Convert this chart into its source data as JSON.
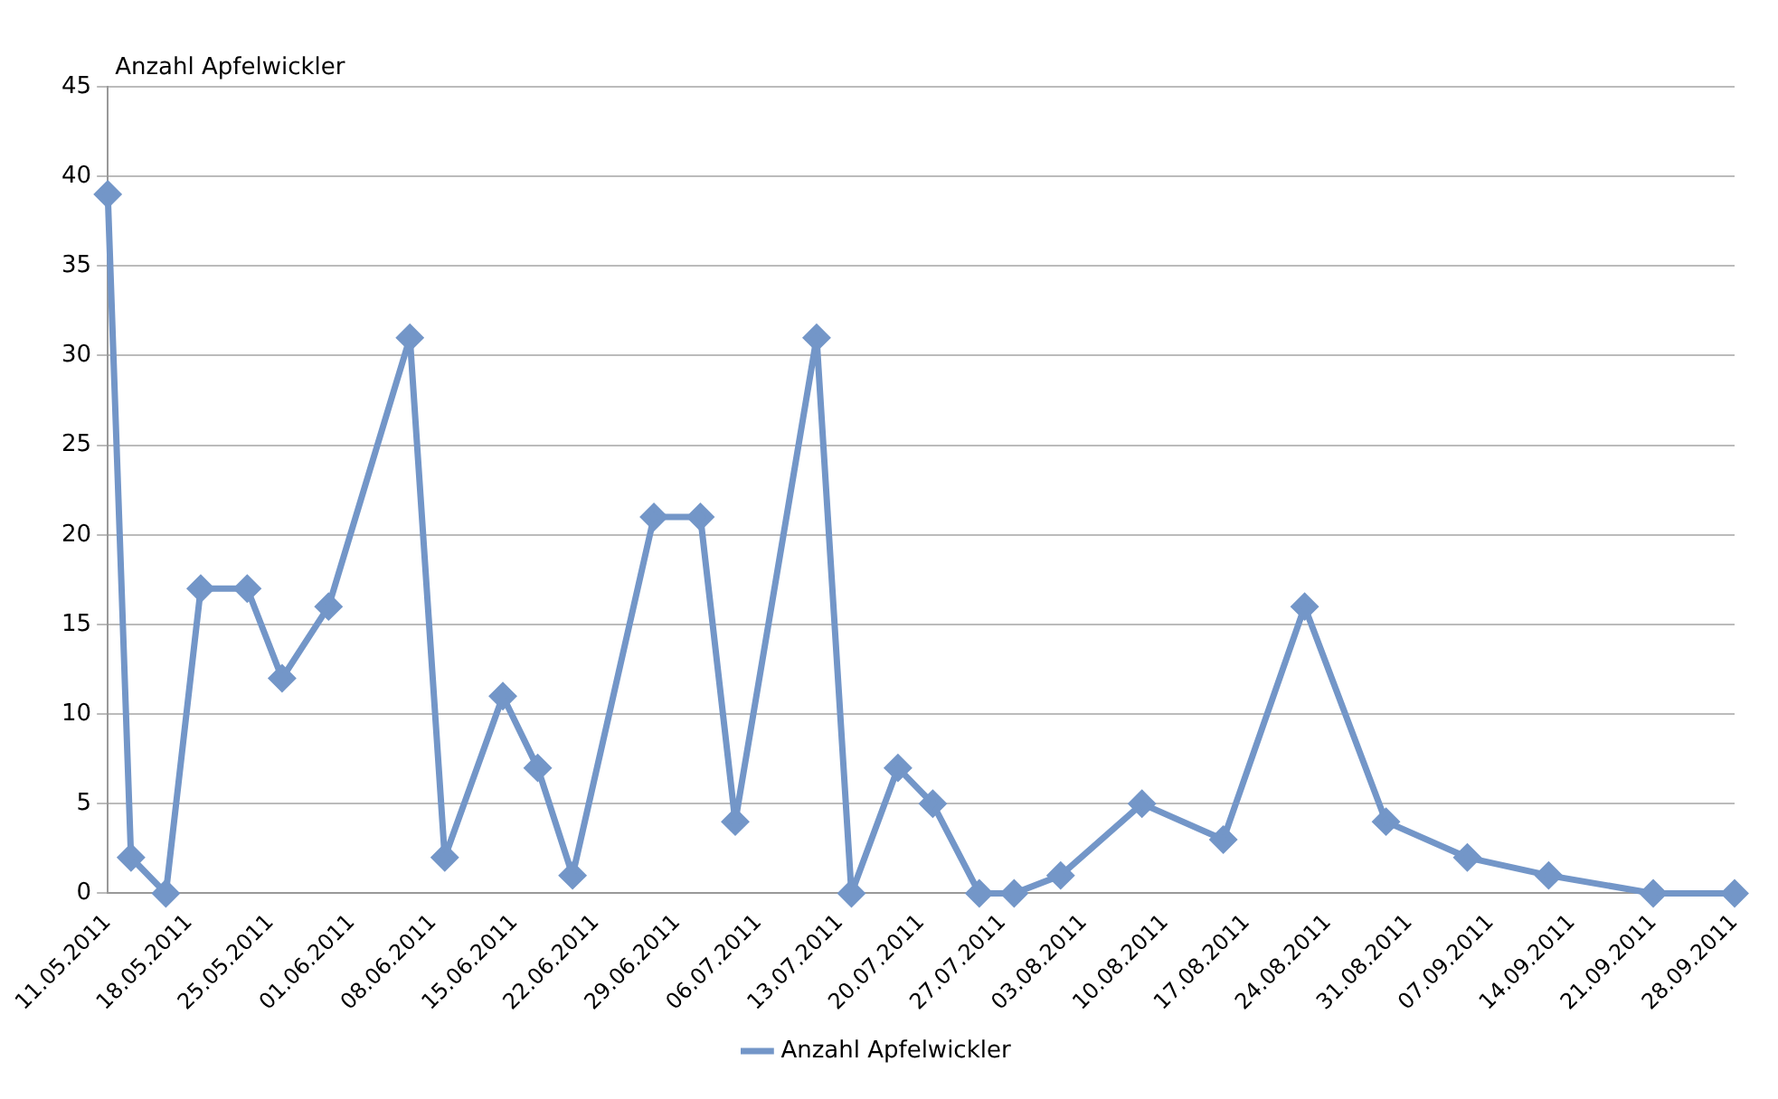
{
  "chart_data": {
    "type": "line",
    "ylabel": "Anzahl Apfelwickler",
    "x": [
      "2011-05-11",
      "2011-05-13",
      "2011-05-16",
      "2011-05-19",
      "2011-05-23",
      "2011-05-26",
      "2011-05-30",
      "2011-06-06",
      "2011-06-09",
      "2011-06-14",
      "2011-06-17",
      "2011-06-20",
      "2011-06-27",
      "2011-07-01",
      "2011-07-04",
      "2011-07-11",
      "2011-07-14",
      "2011-07-18",
      "2011-07-21",
      "2011-07-25",
      "2011-07-28",
      "2011-08-01",
      "2011-08-08",
      "2011-08-15",
      "2011-08-22",
      "2011-08-29",
      "2011-09-05",
      "2011-09-12",
      "2011-09-21",
      "2011-09-28"
    ],
    "series": [
      {
        "name": "Anzahl Apfelwickler",
        "color": "#7396c8",
        "values": [
          39,
          2,
          0,
          17,
          17,
          12,
          16,
          31,
          2,
          11,
          7,
          1,
          21,
          21,
          4,
          31,
          0,
          7,
          5,
          0,
          0,
          1,
          5,
          3,
          16,
          4,
          2,
          1,
          0,
          0
        ]
      }
    ],
    "xlim": [
      "2011-05-11",
      "2011-09-28"
    ],
    "xticks": [
      {
        "value": "2011-05-11",
        "label": "11.05.2011"
      },
      {
        "value": "2011-05-18",
        "label": "18.05.2011"
      },
      {
        "value": "2011-05-25",
        "label": "25.05.2011"
      },
      {
        "value": "2011-06-01",
        "label": "01.06.2011"
      },
      {
        "value": "2011-06-08",
        "label": "08.06.2011"
      },
      {
        "value": "2011-06-15",
        "label": "15.06.2011"
      },
      {
        "value": "2011-06-22",
        "label": "22.06.2011"
      },
      {
        "value": "2011-06-29",
        "label": "29.06.2011"
      },
      {
        "value": "2011-07-06",
        "label": "06.07.2011"
      },
      {
        "value": "2011-07-13",
        "label": "13.07.2011"
      },
      {
        "value": "2011-07-20",
        "label": "20.07.2011"
      },
      {
        "value": "2011-07-27",
        "label": "27.07.2011"
      },
      {
        "value": "2011-08-03",
        "label": "03.08.2011"
      },
      {
        "value": "2011-08-10",
        "label": "10.08.2011"
      },
      {
        "value": "2011-08-17",
        "label": "17.08.2011"
      },
      {
        "value": "2011-08-24",
        "label": "24.08.2011"
      },
      {
        "value": "2011-08-31",
        "label": "31.08.2011"
      },
      {
        "value": "2011-09-07",
        "label": "07.09.2011"
      },
      {
        "value": "2011-09-14",
        "label": "14.09.2011"
      },
      {
        "value": "2011-09-21",
        "label": "21.09.2011"
      },
      {
        "value": "2011-09-28",
        "label": "28.09.2011"
      }
    ],
    "ylim": [
      0,
      45
    ],
    "yticks": [
      0,
      5,
      10,
      15,
      20,
      25,
      30,
      35,
      40,
      45
    ],
    "grid": "y",
    "legend": "bottom",
    "marker": "diamond",
    "line_style": "solid"
  }
}
